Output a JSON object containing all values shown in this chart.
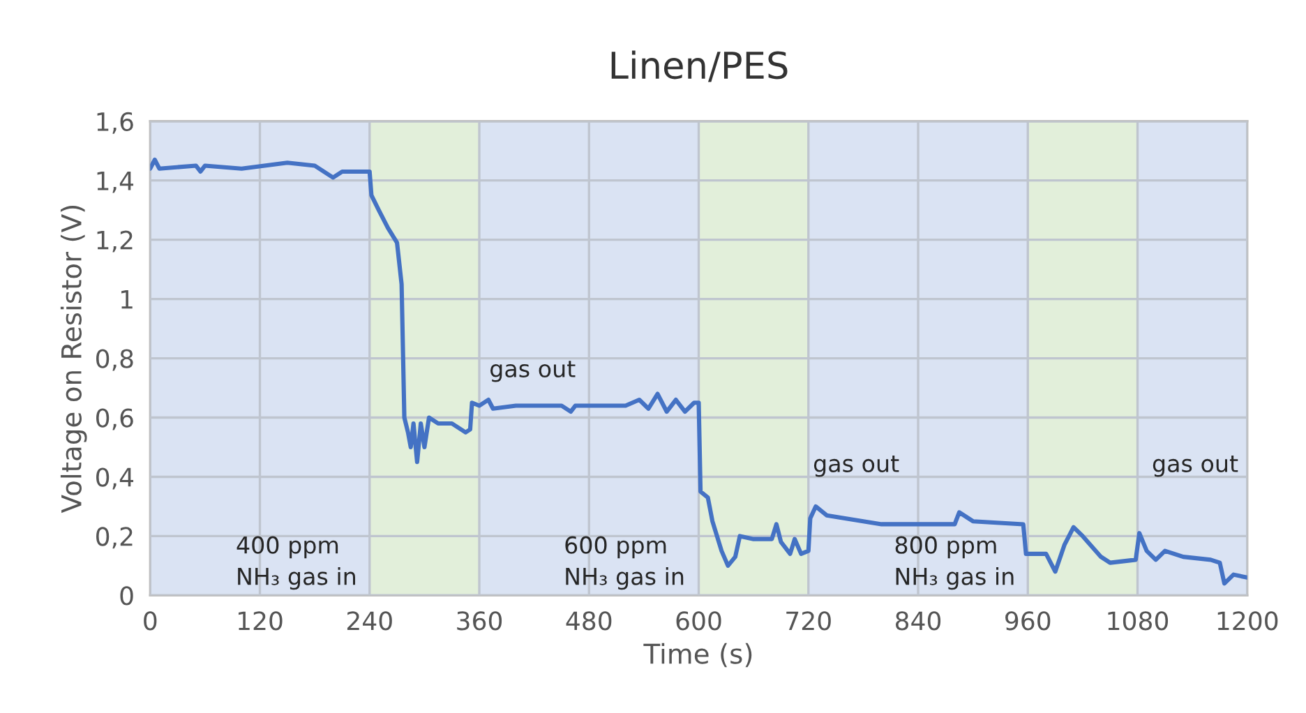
{
  "chart_data": {
    "type": "line",
    "title": "Linen/PES",
    "xlabel": "Time (s)",
    "ylabel": "Voltage on Resistor (V)",
    "xlim": [
      0,
      1200
    ],
    "xticks": [
      0,
      120,
      240,
      360,
      480,
      600,
      720,
      840,
      960,
      1080,
      1200
    ],
    "ylim": [
      0,
      1.6
    ],
    "yticks": [
      0,
      {
        "value": 0.2,
        "label": "0,2"
      },
      {
        "value": 0.4,
        "label": "0,4"
      },
      {
        "value": 0.6,
        "label": "0,6"
      },
      {
        "value": 0.8,
        "label": "0,8"
      },
      1,
      {
        "value": 1.2,
        "label": "1,2"
      },
      {
        "value": 1.4,
        "label": "1,4"
      },
      {
        "value": 1.6,
        "label": "1,6"
      }
    ],
    "grid": true,
    "marker": "none",
    "line_style": "solid",
    "x": [
      0,
      5,
      10,
      50,
      55,
      60,
      100,
      150,
      180,
      200,
      210,
      230,
      240,
      242,
      250,
      260,
      270,
      275,
      278,
      282,
      285,
      288,
      292,
      296,
      300,
      305,
      315,
      330,
      345,
      350,
      352,
      360,
      370,
      375,
      400,
      450,
      460,
      465,
      520,
      535,
      545,
      555,
      565,
      575,
      585,
      595,
      600,
      602,
      610,
      615,
      625,
      632,
      640,
      645,
      660,
      680,
      685,
      690,
      700,
      705,
      712,
      720,
      722,
      728,
      740,
      780,
      800,
      850,
      880,
      885,
      895,
      900,
      955,
      958,
      980,
      990,
      1000,
      1010,
      1020,
      1040,
      1050,
      1078,
      1082,
      1090,
      1100,
      1110,
      1130,
      1160,
      1170,
      1175,
      1185,
      1200
    ],
    "series": [
      {
        "color": "#4472c4",
        "values": [
          1.44,
          1.47,
          1.44,
          1.45,
          1.43,
          1.45,
          1.44,
          1.46,
          1.45,
          1.41,
          1.43,
          1.43,
          1.43,
          1.35,
          1.3,
          1.24,
          1.19,
          1.05,
          0.6,
          0.55,
          0.5,
          0.58,
          0.45,
          0.58,
          0.5,
          0.6,
          0.58,
          0.58,
          0.55,
          0.56,
          0.65,
          0.64,
          0.66,
          0.63,
          0.64,
          0.64,
          0.62,
          0.64,
          0.64,
          0.66,
          0.63,
          0.68,
          0.62,
          0.66,
          0.62,
          0.65,
          0.65,
          0.35,
          0.33,
          0.25,
          0.15,
          0.1,
          0.13,
          0.2,
          0.19,
          0.19,
          0.24,
          0.18,
          0.14,
          0.19,
          0.14,
          0.15,
          0.26,
          0.3,
          0.27,
          0.25,
          0.24,
          0.24,
          0.24,
          0.28,
          0.26,
          0.25,
          0.24,
          0.14,
          0.14,
          0.08,
          0.17,
          0.23,
          0.2,
          0.13,
          0.11,
          0.12,
          0.21,
          0.15,
          0.12,
          0.15,
          0.13,
          0.12,
          0.11,
          0.04,
          0.07,
          0.06
        ]
      }
    ],
    "bands": [
      {
        "axis": "x",
        "from": 0,
        "to": 240,
        "color": "#dae3f3"
      },
      {
        "axis": "x",
        "from": 240,
        "to": 360,
        "color": "#e2efda"
      },
      {
        "axis": "x",
        "from": 360,
        "to": 600,
        "color": "#dae3f3"
      },
      {
        "axis": "x",
        "from": 600,
        "to": 720,
        "color": "#e2efda"
      },
      {
        "axis": "x",
        "from": 720,
        "to": 960,
        "color": "#dae3f3"
      },
      {
        "axis": "x",
        "from": 960,
        "to": 1080,
        "color": "#e2efda"
      },
      {
        "axis": "x",
        "from": 1080,
        "to": 1200,
        "color": "#dae3f3"
      }
    ],
    "annotations": [
      "400 ppm\nNH₃ gas in",
      "gas out",
      "600 ppm\nNH₃ gas in",
      "gas out",
      "800 ppm\nNH₃ gas in",
      "gas out"
    ]
  }
}
